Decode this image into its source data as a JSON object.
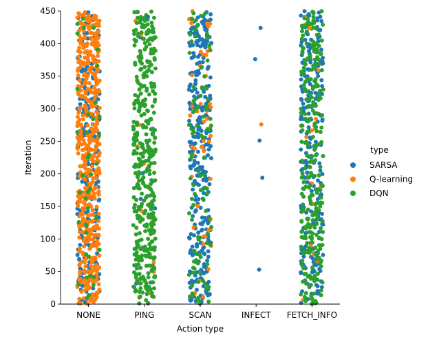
{
  "chart_data": {
    "type": "scatter",
    "subtype": "strip",
    "title": "",
    "xlabel": "Action type",
    "ylabel": "Iteration",
    "categories": [
      "NONE",
      "PING",
      "SCAN",
      "INFECT",
      "FETCH_INFO"
    ],
    "ylim": [
      0,
      450
    ],
    "yticks": [
      0,
      50,
      100,
      150,
      200,
      250,
      300,
      350,
      400,
      450
    ],
    "grid": false,
    "legend": {
      "title": "type",
      "placement": "right",
      "entries": [
        "SARSA",
        "Q-learning",
        "DQN"
      ]
    },
    "series": [
      {
        "name": "SARSA",
        "color": "#1f77b4",
        "density": {
          "NONE": 0.5,
          "PING": 0.02,
          "SCAN": 0.65,
          "INFECT": 0,
          "FETCH_INFO": 0.5
        },
        "points": [
          {
            "x": "PING",
            "y": 441
          },
          {
            "x": "INFECT",
            "y": 424
          },
          {
            "x": "INFECT",
            "y": 376
          },
          {
            "x": "INFECT",
            "y": 251
          },
          {
            "x": "INFECT",
            "y": 194
          },
          {
            "x": "INFECT",
            "y": 53
          }
        ]
      },
      {
        "name": "Q-learning",
        "color": "#ff7f0e",
        "density": {
          "NONE": 1.0,
          "PING": 0.03,
          "SCAN": 0.1,
          "INFECT": 0,
          "FETCH_INFO": 0.03
        },
        "points": [
          {
            "x": "INFECT",
            "y": 276
          },
          {
            "x": "FETCH_INFO",
            "y": 424
          }
        ]
      },
      {
        "name": "DQN",
        "color": "#2ca02c",
        "density": {
          "NONE": 0.08,
          "PING": 0.85,
          "SCAN": 0.2,
          "INFECT": 0,
          "FETCH_INFO": 0.55
        },
        "points": []
      }
    ]
  }
}
